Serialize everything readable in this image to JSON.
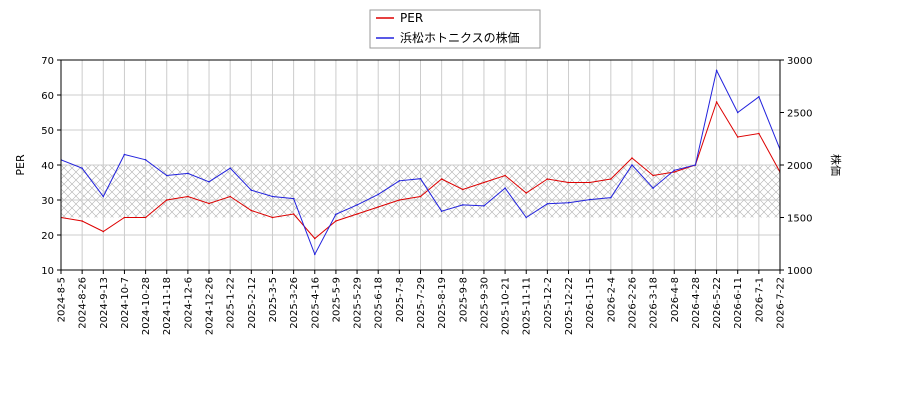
{
  "chart_data": {
    "type": "line",
    "legend": {
      "placement": "top-center",
      "entries": [
        {
          "label": "PER",
          "color": "#dd0000"
        },
        {
          "label": "浜松ホトニクスの株価",
          "color": "#2222dd"
        }
      ]
    },
    "y_left": {
      "label": "PER",
      "range": [
        10,
        70
      ],
      "ticks": [
        10,
        20,
        30,
        40,
        50,
        60,
        70
      ]
    },
    "y_right": {
      "label": "株価",
      "range": [
        1000,
        3000
      ],
      "ticks": [
        1000,
        1500,
        2000,
        2500,
        3000
      ]
    },
    "hatched_band_left": [
      25,
      40
    ],
    "grid": true,
    "x_tick_labels": [
      "2024-8-5",
      "2024-8-26",
      "2024-9-13",
      "2024-10-7",
      "2024-10-28",
      "2024-11-18",
      "2024-12-6",
      "2024-12-26",
      "2025-1-22",
      "2025-2-12",
      "2025-3-5",
      "2025-3-26",
      "2025-4-16",
      "2025-5-9",
      "2025-5-29",
      "2025-6-18",
      "2025-7-8",
      "2025-7-29",
      "2025-8-19",
      "2025-9-8",
      "2025-9-30",
      "2025-10-21",
      "2025-11-11",
      "2025-12-2",
      "2025-12-22",
      "2026-1-15",
      "2026-2-4",
      "2026-2-26",
      "2026-3-18",
      "2026-4-8",
      "2026-4-28",
      "2026-5-22",
      "2026-6-11",
      "2026-7-1",
      "2026-7-22"
    ],
    "series": [
      {
        "name": "PER",
        "axis": "left",
        "color": "#dd0000",
        "x": [
          0,
          1,
          2,
          3,
          4,
          5,
          6,
          7,
          8,
          9,
          10,
          11,
          12,
          13,
          14,
          15,
          16,
          17,
          18,
          19,
          20,
          21,
          22,
          23,
          24,
          25,
          26,
          27,
          28,
          29,
          30,
          31,
          32,
          33,
          34
        ],
        "values": [
          25,
          24,
          21,
          25,
          25,
          30,
          31,
          29,
          31,
          27,
          25,
          26,
          19,
          24,
          26,
          28,
          30,
          31,
          36,
          33,
          35,
          37,
          32,
          36,
          35,
          35,
          36,
          42,
          37,
          38,
          40,
          58,
          48,
          49,
          38
        ]
      },
      {
        "name": "浜松ホトニクスの株価",
        "axis": "right",
        "color": "#2222dd",
        "x": [
          0,
          1,
          2,
          3,
          4,
          5,
          6,
          7,
          8,
          9,
          10,
          11,
          12,
          13,
          14,
          15,
          16,
          17,
          18,
          19,
          20,
          21,
          22,
          23,
          24,
          25,
          26,
          27,
          28,
          29,
          30,
          31,
          32,
          33,
          34
        ],
        "values": [
          2050,
          1970,
          1700,
          2100,
          2050,
          1900,
          1920,
          1840,
          1970,
          1760,
          1700,
          1680,
          1150,
          1530,
          1620,
          1720,
          1850,
          1870,
          1560,
          1620,
          1610,
          1780,
          1500,
          1630,
          1640,
          1670,
          1690,
          2000,
          1780,
          1950,
          2000,
          2900,
          2500,
          2650,
          2150
        ]
      }
    ]
  }
}
